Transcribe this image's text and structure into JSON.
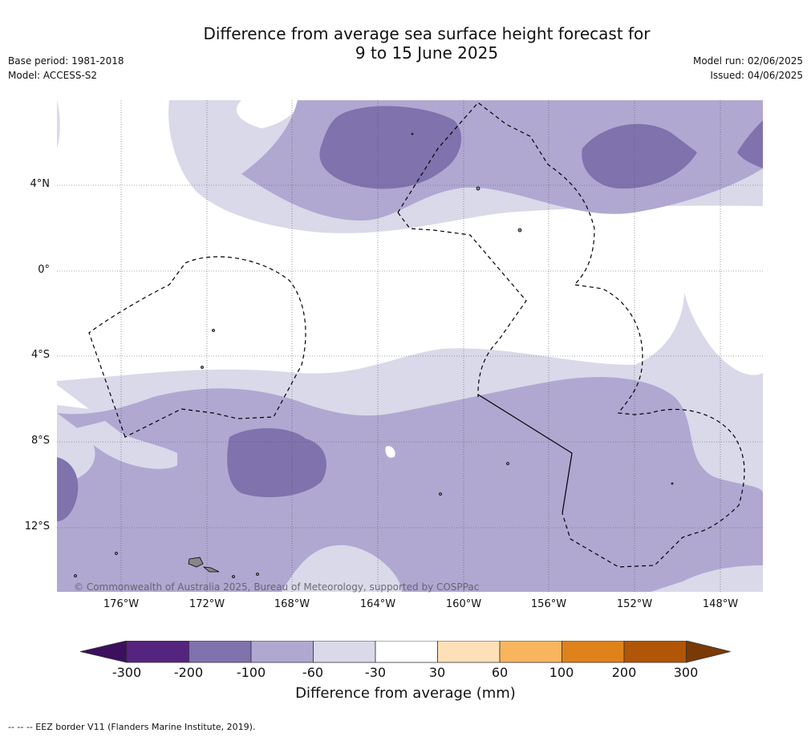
{
  "title": {
    "line1": "Difference from average sea surface height forecast for",
    "line2": "9 to 15 June 2025"
  },
  "meta_left": {
    "base_period": "Base period: 1981-2018",
    "model": "Model: ACCESS-S2"
  },
  "meta_right": {
    "model_run": "Model run: 02/06/2025",
    "issued": "Issued: 04/06/2025"
  },
  "map": {
    "lat_labels": [
      "4°N",
      "0°",
      "4°S",
      "8°S",
      "12°S"
    ],
    "lon_labels": [
      "176°W",
      "172°W",
      "168°W",
      "164°W",
      "160°W",
      "156°W",
      "152°W",
      "148°W"
    ],
    "copyright": "© Commonwealth of Australia 2025, Bureau of Meteorology, supported by COSPPac",
    "fill_colors": {
      "-200_-100": "#7f72ad",
      "-100_-60": "#b0a8d1",
      "-60_-30": "#d9d9ea",
      "-30_30": "#ffffff"
    }
  },
  "colorbar": {
    "title": "Difference from average (mm)",
    "ticks": [
      "-300",
      "-200",
      "-100",
      "-60",
      "-30",
      "30",
      "60",
      "100",
      "200",
      "300"
    ],
    "colors": [
      "#3c0f5f",
      "#55247f",
      "#7f72ad",
      "#b0a8d1",
      "#d9d9ea",
      "#ffffff",
      "#fde0b8",
      "#f8b55e",
      "#e0821c",
      "#b05606",
      "#7a3a06"
    ]
  },
  "source_note": "--  --  -- EEZ border V11 (Flanders Marine Institute, 2019)."
}
